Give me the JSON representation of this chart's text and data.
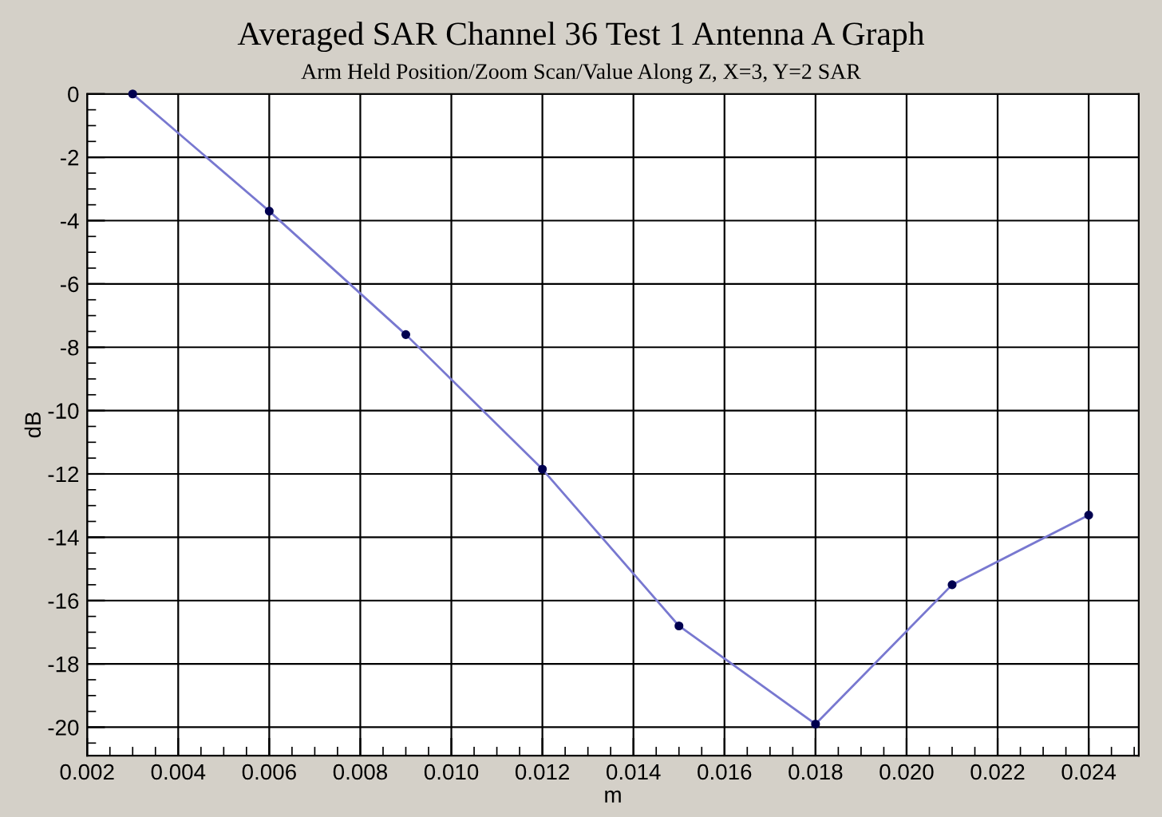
{
  "chart_data": {
    "type": "line",
    "title": "Averaged SAR Channel 36 Test 1 Antenna A Graph",
    "subtitle": "Arm Held Position/Zoom Scan/Value Along Z, X=3, Y=2 SAR",
    "xlabel": "m",
    "ylabel": "dB",
    "series": [
      {
        "color": "#7878d0",
        "x": [
          0.003,
          0.006,
          0.009,
          0.012,
          0.015,
          0.018,
          0.021,
          0.024
        ],
        "values": [
          0,
          -3.7,
          -7.6,
          -11.85,
          -16.8,
          -19.9,
          -15.5,
          -13.3
        ]
      }
    ],
    "marker": "circle",
    "line_style": "solid",
    "grid": true,
    "xlim": [
      0.002,
      0.0251
    ],
    "ylim": [
      -20.9,
      0
    ],
    "xticks": [
      {
        "value": 0.002,
        "label": "0.002"
      },
      {
        "value": 0.004,
        "label": "0.004"
      },
      {
        "value": 0.006,
        "label": "0.006"
      },
      {
        "value": 0.008,
        "label": "0.008"
      },
      {
        "value": 0.01,
        "label": "0.010"
      },
      {
        "value": 0.012,
        "label": "0.012"
      },
      {
        "value": 0.014,
        "label": "0.014"
      },
      {
        "value": 0.016,
        "label": "0.016"
      },
      {
        "value": 0.018,
        "label": "0.018"
      },
      {
        "value": 0.02,
        "label": "0.020"
      },
      {
        "value": 0.022,
        "label": "0.022"
      },
      {
        "value": 0.024,
        "label": "0.024"
      }
    ],
    "yticks": [
      0,
      -2,
      -4,
      -6,
      -8,
      -10,
      -12,
      -14,
      -16,
      -18,
      -20
    ]
  }
}
